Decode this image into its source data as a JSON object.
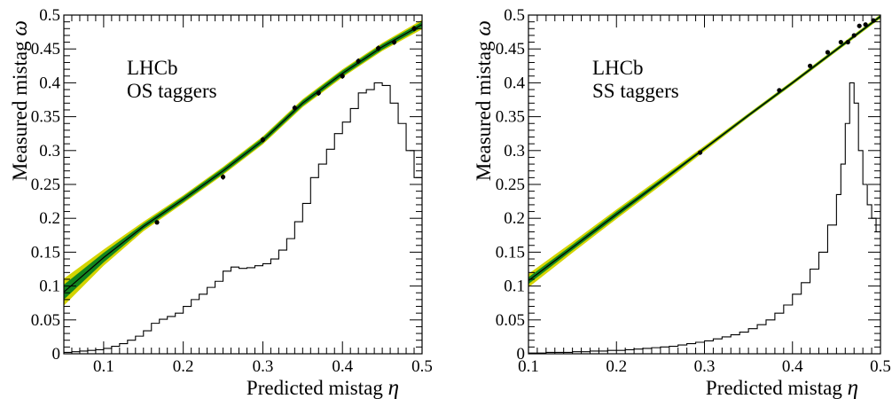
{
  "chart_data": [
    {
      "type": "line",
      "panel": "left",
      "annotation_lines": [
        "LHCb",
        "OS taggers"
      ],
      "xlabel": "Predicted mistag",
      "xlabel_symbol": "η",
      "ylabel": "Measured mistag",
      "ylabel_symbol": "ω",
      "xlim": [
        0.05,
        0.5
      ],
      "ylim": [
        0,
        0.5
      ],
      "x_ticks": [
        0.1,
        0.2,
        0.3,
        0.4,
        0.5
      ],
      "y_ticks": [
        0,
        0.05,
        0.1,
        0.15,
        0.2,
        0.25,
        0.3,
        0.35,
        0.4,
        0.45,
        0.5
      ],
      "grid": false,
      "colors": {
        "band_outer": "#d4d400",
        "band_inner": "#12851f",
        "line": "#000000",
        "points": "#000000"
      },
      "calibration_curve": {
        "x": [
          0.05,
          0.1,
          0.15,
          0.2,
          0.25,
          0.3,
          0.35,
          0.4,
          0.45,
          0.5
        ],
        "y": [
          0.091,
          0.142,
          0.188,
          0.228,
          0.27,
          0.315,
          0.37,
          0.414,
          0.453,
          0.486
        ],
        "inner_halfwidth": [
          0.011,
          0.007,
          0.004,
          0.004,
          0.004,
          0.004,
          0.004,
          0.004,
          0.004,
          0.004
        ],
        "outer_halfwidth": [
          0.02,
          0.012,
          0.007,
          0.006,
          0.006,
          0.006,
          0.006,
          0.006,
          0.006,
          0.007
        ]
      },
      "points": {
        "x": [
          0.167,
          0.25,
          0.3,
          0.34,
          0.37,
          0.4,
          0.42,
          0.445,
          0.465,
          0.49
        ],
        "y": [
          0.194,
          0.261,
          0.316,
          0.363,
          0.385,
          0.41,
          0.432,
          0.451,
          0.46,
          0.48
        ],
        "err": [
          0.003,
          0.004,
          0.004,
          0.004,
          0.004,
          0.004,
          0.004,
          0.004,
          0.004,
          0.004
        ]
      },
      "histogram": {
        "edges": [
          0.05,
          0.06,
          0.07,
          0.08,
          0.09,
          0.1,
          0.11,
          0.12,
          0.13,
          0.14,
          0.15,
          0.16,
          0.17,
          0.18,
          0.19,
          0.2,
          0.21,
          0.22,
          0.23,
          0.24,
          0.25,
          0.26,
          0.27,
          0.28,
          0.29,
          0.3,
          0.31,
          0.32,
          0.33,
          0.34,
          0.35,
          0.36,
          0.37,
          0.38,
          0.39,
          0.4,
          0.41,
          0.42,
          0.43,
          0.44,
          0.45,
          0.46,
          0.47,
          0.48,
          0.49,
          0.5
        ],
        "heights": [
          0.002,
          0.003,
          0.004,
          0.005,
          0.006,
          0.008,
          0.011,
          0.015,
          0.02,
          0.026,
          0.034,
          0.045,
          0.051,
          0.055,
          0.06,
          0.07,
          0.08,
          0.088,
          0.098,
          0.107,
          0.122,
          0.128,
          0.126,
          0.127,
          0.13,
          0.133,
          0.14,
          0.153,
          0.17,
          0.195,
          0.222,
          0.26,
          0.28,
          0.302,
          0.325,
          0.342,
          0.362,
          0.385,
          0.39,
          0.4,
          0.396,
          0.37,
          0.34,
          0.3,
          0.26
        ],
        "color": "#000000"
      }
    },
    {
      "type": "line",
      "panel": "right",
      "annotation_lines": [
        "LHCb",
        "SS taggers"
      ],
      "xlabel": "Predicted mistag",
      "xlabel_symbol": "η",
      "ylabel": "Measured mistag",
      "ylabel_symbol": "ω",
      "xlim": [
        0.1,
        0.5
      ],
      "ylim": [
        0,
        0.5
      ],
      "x_ticks": [
        0.1,
        0.2,
        0.3,
        0.4,
        0.5
      ],
      "y_ticks": [
        0,
        0.05,
        0.1,
        0.15,
        0.2,
        0.25,
        0.3,
        0.35,
        0.4,
        0.45,
        0.5
      ],
      "grid": false,
      "colors": {
        "band_outer": "#d4d400",
        "band_inner": "#12851f",
        "line": "#000000",
        "points": "#000000"
      },
      "calibration_curve": {
        "x": [
          0.1,
          0.15,
          0.2,
          0.25,
          0.3,
          0.35,
          0.4,
          0.45,
          0.5
        ],
        "y": [
          0.108,
          0.157,
          0.206,
          0.254,
          0.303,
          0.352,
          0.4,
          0.449,
          0.498
        ],
        "inner_halfwidth": [
          0.005,
          0.004,
          0.004,
          0.003,
          0.002,
          0.002,
          0.002,
          0.002,
          0.002
        ],
        "outer_halfwidth": [
          0.01,
          0.008,
          0.007,
          0.006,
          0.004,
          0.003,
          0.003,
          0.003,
          0.003
        ]
      },
      "points": {
        "x": [
          0.295,
          0.385,
          0.42,
          0.44,
          0.455,
          0.463,
          0.47,
          0.476,
          0.483,
          0.492
        ],
        "y": [
          0.297,
          0.389,
          0.425,
          0.445,
          0.46,
          0.46,
          0.47,
          0.484,
          0.486,
          0.492
        ],
        "err": [
          0.002,
          0.002,
          0.002,
          0.002,
          0.002,
          0.002,
          0.002,
          0.002,
          0.002,
          0.002
        ]
      },
      "histogram": {
        "edges": [
          0.1,
          0.11,
          0.12,
          0.13,
          0.14,
          0.15,
          0.16,
          0.17,
          0.18,
          0.19,
          0.2,
          0.21,
          0.22,
          0.23,
          0.24,
          0.25,
          0.26,
          0.27,
          0.28,
          0.29,
          0.3,
          0.31,
          0.32,
          0.33,
          0.34,
          0.35,
          0.36,
          0.37,
          0.38,
          0.39,
          0.4,
          0.41,
          0.42,
          0.43,
          0.44,
          0.45,
          0.455,
          0.46,
          0.465,
          0.47,
          0.475,
          0.48,
          0.485,
          0.49,
          0.495,
          0.5
        ],
        "heights": [
          0.001,
          0.001,
          0.002,
          0.002,
          0.002,
          0.003,
          0.003,
          0.004,
          0.004,
          0.005,
          0.005,
          0.006,
          0.007,
          0.008,
          0.009,
          0.01,
          0.011,
          0.013,
          0.015,
          0.017,
          0.019,
          0.022,
          0.025,
          0.028,
          0.032,
          0.037,
          0.043,
          0.05,
          0.06,
          0.072,
          0.088,
          0.105,
          0.125,
          0.15,
          0.19,
          0.235,
          0.28,
          0.34,
          0.4,
          0.37,
          0.3,
          0.25,
          0.22,
          0.2,
          0.18
        ],
        "color": "#000000"
      }
    }
  ]
}
